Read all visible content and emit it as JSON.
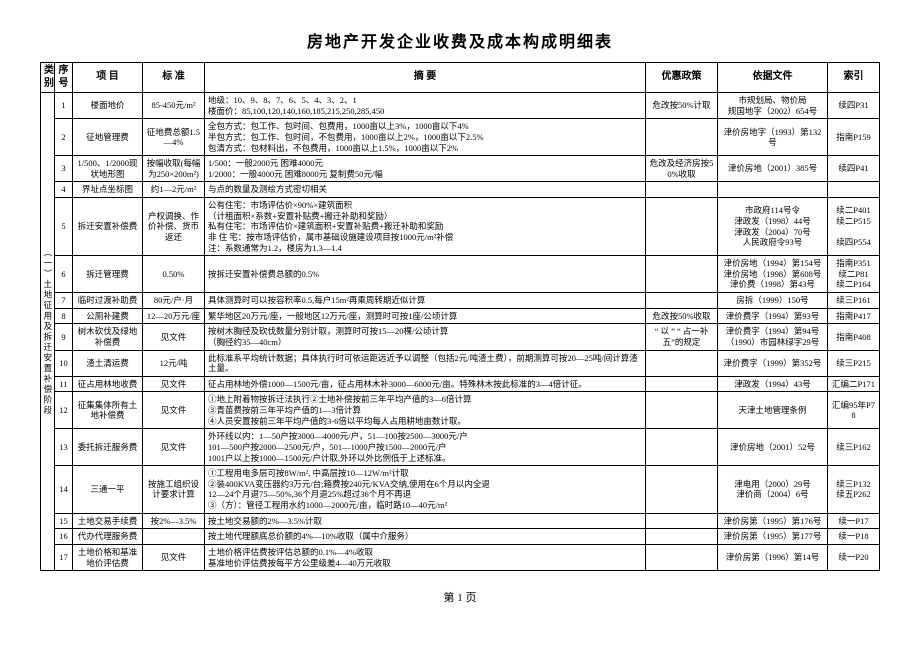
{
  "title": "房地产开发企业收费及成本构成明细表",
  "headers": {
    "category": "类别",
    "seq": "序号",
    "item": "项 目",
    "standard": "标 准",
    "desc": "摘    要",
    "policy": "优惠政策",
    "basis": "依据文件",
    "index": "索引"
  },
  "category_label": "（一）土地征用及拆迁安置补偿阶段",
  "rows": [
    {
      "seq": "1",
      "item": "楼面地价",
      "std": "85-450元/m²",
      "desc": "地级：10、9、8、7、6、5、4、3、2、1\n楼面价：85,100,120,140,160,185,215,250,285,450",
      "policy": "危改按50%计取",
      "basis": "市规划局、物价局\n规国地字（2002）654号",
      "idx": "续四P31"
    },
    {
      "seq": "2",
      "item": "征地管理费",
      "std": "征地费总额1.5—4%",
      "desc": "全包方式：包工作、包时间、包费用，1000亩以上3%，1000亩以下4%\n半包方式：包工作、包时间，不包费用，1000亩以上2%，1000亩以下2.5%\n包清方式：包材料出，不包费用，1000亩以上1.5%，1000亩以下2%",
      "policy": "",
      "basis": "津价房地字（1993）第132号",
      "idx": "指南P159"
    },
    {
      "seq": "3",
      "item": "1/500、1/2000现状地形图",
      "std": "按幅收取(每幅为250×200m²)",
      "desc": "1/500：一般2000元 困难4000元\n1/2000：一般4000元 困难8000元 复制费50元/幅",
      "policy": "危改及经济房按50%收取",
      "basis": "津价房地（2001）385号",
      "idx": "续四P41"
    },
    {
      "seq": "4",
      "item": "界址点坐标图",
      "std": "约1—2元/m²",
      "desc": "与点的数量及测绘方式密切相关",
      "policy": "",
      "basis": "",
      "idx": ""
    },
    {
      "seq": "5",
      "item": "拆迁安置补偿费",
      "std": "产权调换、作价补偿、货币返还",
      "desc": "公有住宅：市场评估价×90%×建筑面积\n（计租面积×系数+安置补贴费+搬迁补助和奖励）\n私有住宅：市场评估价×建筑面积+安置补贴费+搬迁补助和奖励\n非 住 宅：按市场评估价，属市基础设施建设项目按1000元/m²补偿\n注：系数通常为1.2，楼房为1.3—1.4",
      "policy": "",
      "basis": "市政府114号令\n津政发（1998）44号\n津政发（2004）70号\n人民政府令93号",
      "idx": "续二P401\n续二P515\n\n续四P554"
    },
    {
      "seq": "6",
      "item": "拆迁管理费",
      "std": "0.50%",
      "desc": "按拆迁安置补偿费总额的0.5%",
      "policy": "",
      "basis": "津价房地（1994）第154号\n津价房地（1998）第608号\n津价费（1998）第43号",
      "idx": "指南P351\n续二P81\n续二P164"
    },
    {
      "seq": "7",
      "item": "临时过渡补助费",
      "std": "80元/户·月",
      "desc": "具体测算时可以按容积率0.5,每户15m²再乘周转期近似计算",
      "policy": "",
      "basis": "房拆（1999）150号",
      "idx": "续三P161"
    },
    {
      "seq": "8",
      "item": "公厕补建费",
      "std": "12—20万元/座",
      "desc": "繁华地区20万元/座，一般地区12万元/座，测算时可按1座/公顷计算",
      "policy": "危改按50%收取",
      "basis": "津价费字（1994）第93号",
      "idx": "指南P417"
    },
    {
      "seq": "9",
      "item": "树木砍伐及绿地补偿费",
      "std": "见文件",
      "desc": "按树木胸径及砍伐数量分别计取，测算时可按15—20棵/公顷计算\n（胸径约35—40cm）",
      "policy": "“ 以 ” “ 占一补五”的规定",
      "basis": "津价费字（1994）第94号\n（1990）市园林绿字29号",
      "idx": "指南P408"
    },
    {
      "seq": "10",
      "item": "渣土清运费",
      "std": "12元/吨",
      "desc": "此标准系平均统计数据；具体执行时可依运距远近予以调整（包括2元/吨渣土费），前期测算可按20—25吨/间计算渣土量。",
      "policy": "",
      "basis": "津价费字（1999）第352号",
      "idx": "续三P215"
    },
    {
      "seq": "11",
      "item": "征占用林地收费",
      "std": "见文件",
      "desc": "征占用林地外偿1000—1500元/亩，征占用林木补3000—6000元/亩。特殊林木按此标准的3—4倍计征。",
      "policy": "",
      "basis": "津政发（1994）43号",
      "idx": "汇编二P171"
    },
    {
      "seq": "12",
      "item": "征集集体所有土地补偿费",
      "std": "见文件",
      "desc": "①地上附着物按拆迁法执行②土地补偿按前三年平均产值的3—6倍计算\n③青苗费按前三年平均产值的1—3倍计算\n④人员安置按前三年平均产值的3-6倍以平均每人占用耕地亩数计取。",
      "policy": "",
      "basis": "天津土地管理条例",
      "idx": "汇编95年P78"
    },
    {
      "seq": "13",
      "item": "委托拆迁服务费",
      "std": "见文件",
      "desc": "外环线以内：1—50户按3000—4000元/户，51—100按2500—3000元/户\n101—500户按2000—2500元/户，501—1000户按1500—2000元/户\n1001户以上按1000—1500元/户计取,外环以外比例低于上述标准。",
      "policy": "",
      "basis": "津价房地（2001）52号",
      "idx": "续三P162"
    },
    {
      "seq": "14",
      "item": "三通一平",
      "std": "按施工组织设计要求计算",
      "desc": "①工程用电多层可按8W/m², 中高层按10—12W/m²计取\n②装400KVA变压器约3万元/台;箱费按240元/KVA交纳,使用在6个月以内全退\n12—24个月退75—50%,36个月退25%超过36个月不再退\n③（方）：管径工程用水约1000—2000元/亩，临时路10—40元/m²",
      "policy": "",
      "basis": "津电用（2000）29号\n津价商（2004）6号",
      "idx": "续三P132\n续五P262"
    },
    {
      "seq": "15",
      "item": "土地交易手续费",
      "std": "按2%—3.5%",
      "desc": "按土地交易额的2%—3.5%计取",
      "policy": "",
      "basis": "津价房第（1995）第176号",
      "idx": "续一P17"
    },
    {
      "seq": "16",
      "item": "代办代理服务费",
      "std": "",
      "desc": "按土地代理额底总价额的4%—10%收取（属中介服务）",
      "policy": "",
      "basis": "津价房第（1995）第177号",
      "idx": "续一P18"
    },
    {
      "seq": "17",
      "item": "土地价格和基准地价评估费",
      "std": "见文件",
      "desc": "土地价格评估费按评估总额的0.1%—4%收取\n基准地价评估费按每平方公里级差4—40万元收取",
      "policy": "",
      "basis": "津价房第（1996）第14号",
      "idx": "续一P20"
    }
  ],
  "footer": "第 1 页"
}
